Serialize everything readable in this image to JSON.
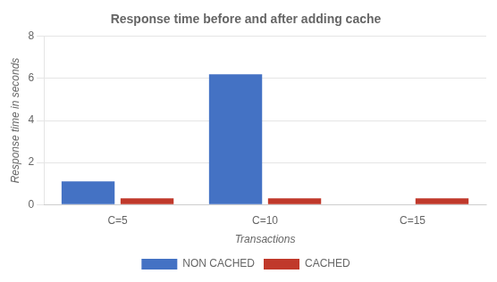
{
  "chart_data": {
    "type": "bar",
    "title": "Response time before and after adding cache",
    "xlabel": "Transactions",
    "ylabel": "Response time in seconds",
    "categories": [
      "C=5",
      "C=10",
      "C=15"
    ],
    "series": [
      {
        "name": "NON CACHED",
        "color": "#4472C4",
        "values": [
          1.1,
          6.2,
          0.0
        ]
      },
      {
        "name": "CACHED",
        "color": "#C0392B",
        "values": [
          0.3,
          0.3,
          0.3
        ]
      }
    ],
    "ylim": [
      0,
      8
    ],
    "yticks": [
      0,
      2,
      4,
      6,
      8
    ],
    "grid": true,
    "legend": "bottom"
  }
}
